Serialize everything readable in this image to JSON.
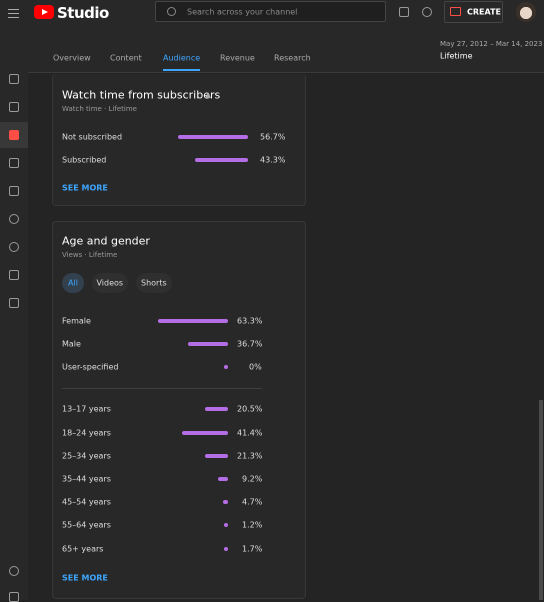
{
  "header": {
    "logo": "Studio",
    "search_placeholder": "Search across your channel",
    "create": "CREATE"
  },
  "tabs": [
    "Overview",
    "Content",
    "Audience",
    "Revenue",
    "Research"
  ],
  "active_tab": 2,
  "date_range": "May 27, 2012 – Mar 14, 2023",
  "period": "Lifetime",
  "watch_time": {
    "title": "Watch time from subscribers",
    "subtitle": "Watch time · Lifetime",
    "rows": [
      {
        "label": "Not subscribed",
        "value": 56.7,
        "value_label": "56.7%"
      },
      {
        "label": "Subscribed",
        "value": 43.3,
        "value_label": "43.3%"
      }
    ],
    "see_more": "SEE MORE"
  },
  "age_gender": {
    "title": "Age and gender",
    "subtitle": "Views · Lifetime",
    "filters": [
      "All",
      "Videos",
      "Shorts"
    ],
    "active_filter": 0,
    "gender": [
      {
        "label": "Female",
        "value": 63.3,
        "value_label": "63.3%"
      },
      {
        "label": "Male",
        "value": 36.7,
        "value_label": "36.7%"
      },
      {
        "label": "User-specified",
        "value": 0,
        "value_label": "0%"
      }
    ],
    "age": [
      {
        "label": "13–17 years",
        "value": 20.5,
        "value_label": "20.5%"
      },
      {
        "label": "18–24 years",
        "value": 41.4,
        "value_label": "41.4%"
      },
      {
        "label": "25–34 years",
        "value": 21.3,
        "value_label": "21.3%"
      },
      {
        "label": "35–44 years",
        "value": 9.2,
        "value_label": "9.2%"
      },
      {
        "label": "45–54 years",
        "value": 4.7,
        "value_label": "4.7%"
      },
      {
        "label": "55–64 years",
        "value": 1.2,
        "value_label": "1.2%"
      },
      {
        "label": "65+ years",
        "value": 1.7,
        "value_label": "1.7%"
      }
    ],
    "see_more": "SEE MORE"
  }
}
